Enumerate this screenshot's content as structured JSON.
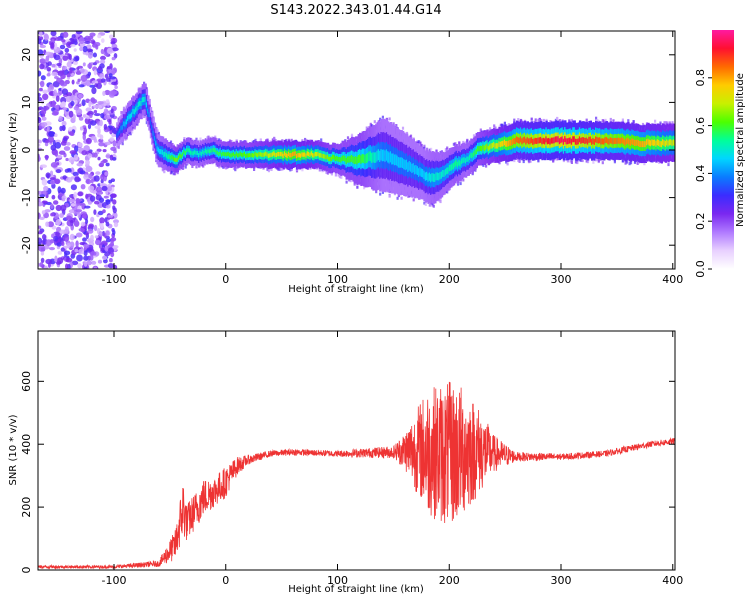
{
  "figure": {
    "title": "S143.2022.343.01.44.G14"
  },
  "colors": {
    "snr_line": "#ee3333",
    "frame": "#000000",
    "colormap": [
      "#ffffff",
      "#e8d0ff",
      "#b07aff",
      "#7a28f0",
      "#3b2cff",
      "#0a7cff",
      "#00d6ff",
      "#00ff9a",
      "#4cff00",
      "#c8f000",
      "#ffcc00",
      "#ff6a00",
      "#ff1030",
      "#ff1aa0"
    ]
  },
  "chart_data": [
    {
      "type": "heatmap",
      "title": "S143.2022.343.01.44.G14",
      "xlabel": "Height of straight line (km)",
      "ylabel": "Frequency (Hz)",
      "xlim": [
        -168,
        402
      ],
      "ylim": [
        -25,
        25
      ],
      "x_ticks": [
        -100,
        0,
        100,
        200,
        300,
        400
      ],
      "x_tick_labels": [
        "-100",
        "0",
        "100",
        "200",
        "300",
        "400"
      ],
      "y_ticks": [
        -20,
        -10,
        0,
        10,
        20
      ],
      "y_tick_labels": [
        "-20",
        "-10",
        "0",
        "10",
        "20"
      ],
      "colorbar": {
        "label": "Normalized spectral amplitude",
        "range": [
          0,
          1
        ],
        "ticks": [
          0,
          0.2,
          0.4,
          0.6,
          0.8
        ],
        "tick_labels": [
          "0.0",
          "0.2",
          "0.4",
          "0.6",
          "0.8"
        ]
      },
      "ridge": {
        "x": [
          -98,
          -90,
          -80,
          -73,
          -68,
          -62,
          -55,
          -45,
          -35,
          -25,
          -15,
          0,
          20,
          40,
          60,
          80,
          100,
          120,
          140,
          160,
          175,
          185,
          195,
          205,
          215,
          225,
          240,
          260,
          300,
          340,
          370,
          402
        ],
        "frequency": [
          3,
          6,
          9,
          11,
          6,
          0,
          -1,
          -2,
          0,
          -1,
          0,
          -1,
          -1,
          -1,
          -1,
          -1,
          -2,
          -2,
          -1,
          -3,
          -5,
          -6,
          -5,
          -3,
          -2,
          0,
          1,
          2,
          2,
          2,
          1.5,
          1.5
        ],
        "amplitude": [
          0.35,
          0.45,
          0.5,
          0.5,
          0.35,
          0.45,
          0.5,
          0.65,
          0.55,
          0.5,
          0.55,
          0.6,
          0.62,
          0.7,
          0.8,
          0.7,
          0.6,
          0.6,
          0.45,
          0.45,
          0.45,
          0.5,
          0.5,
          0.55,
          0.5,
          0.6,
          0.7,
          0.85,
          0.95,
          0.85,
          0.8,
          0.7
        ],
        "width": [
          1.2,
          1.5,
          1.5,
          1.5,
          1.5,
          1.5,
          1.5,
          1.2,
          1.2,
          1.2,
          1.2,
          1.2,
          1.2,
          1.3,
          1.3,
          1.3,
          1.4,
          2.5,
          3.5,
          3.0,
          2.5,
          2.5,
          2.0,
          1.8,
          1.6,
          1.6,
          1.6,
          1.8,
          1.8,
          1.8,
          1.8,
          1.8
        ]
      },
      "noise_region": {
        "x_range": [
          -168,
          -98
        ],
        "frequency_range": [
          -25,
          25
        ]
      }
    },
    {
      "type": "line",
      "xlabel": "Height of straight line (km)",
      "ylabel": "SNR (10 * v/v)",
      "xlim": [
        -168,
        402
      ],
      "ylim": [
        0,
        760
      ],
      "x_ticks": [
        -100,
        0,
        100,
        200,
        300,
        400
      ],
      "x_tick_labels": [
        "-100",
        "0",
        "100",
        "200",
        "300",
        "400"
      ],
      "y_ticks": [
        0,
        200,
        400,
        600
      ],
      "y_tick_labels": [
        "0",
        "200",
        "400",
        "600"
      ],
      "series": [
        {
          "x": [
            -168,
            -100,
            -60,
            -45,
            -38,
            -35,
            -25,
            -20,
            -10,
            0,
            10,
            20,
            40,
            60,
            100,
            150,
            160,
            170,
            180,
            195,
            205,
            215,
            225,
            240,
            260,
            300,
            340,
            380,
            402
          ],
          "values": [
            10,
            10,
            20,
            80,
            200,
            150,
            200,
            230,
            250,
            280,
            330,
            350,
            370,
            375,
            370,
            375,
            380,
            380,
            380,
            370,
            370,
            380,
            380,
            370,
            360,
            360,
            370,
            400,
            410
          ],
          "fluctuation": [
            5,
            5,
            10,
            50,
            100,
            60,
            60,
            60,
            50,
            50,
            30,
            15,
            10,
            10,
            10,
            20,
            60,
            130,
            200,
            230,
            230,
            200,
            150,
            60,
            15,
            10,
            10,
            10,
            10
          ]
        }
      ]
    }
  ]
}
